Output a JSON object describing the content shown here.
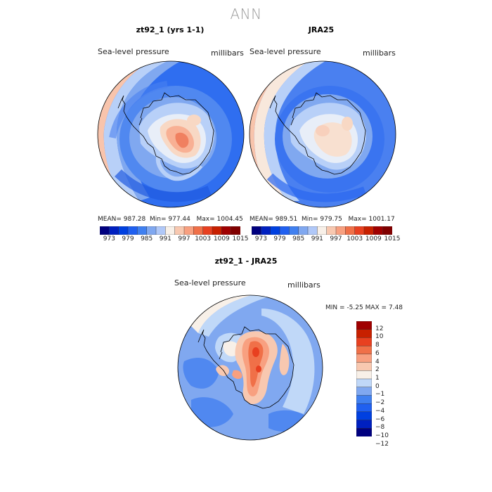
{
  "figure": {
    "title": "ANN",
    "colors": {
      "continent_outline": "#000000",
      "palette_abs": [
        "#00007f",
        "#0020c0",
        "#0040e0",
        "#2060f0",
        "#4080f0",
        "#80a8f0",
        "#b0c8f8",
        "#f8f0e8",
        "#f8c8b0",
        "#f8a080",
        "#f07048",
        "#e84020",
        "#c82000",
        "#a00000",
        "#800000"
      ],
      "palette_diff": [
        "#00007f",
        "#0020c0",
        "#0040e0",
        "#2060f0",
        "#4080f0",
        "#80a8f0",
        "#c0d8f8",
        "#f8f0e8",
        "#f8c8b0",
        "#f8a080",
        "#f07048",
        "#e84020",
        "#c82000",
        "#a00000"
      ]
    }
  },
  "panels": [
    {
      "title": "zt92_1 (yrs 1-1)",
      "field": "Sea-level pressure",
      "units": "millibars",
      "stats": {
        "mean_label": "MEAN=",
        "mean": "987.28",
        "min_label": "Min=",
        "min": "977.44",
        "max_label": "Max=",
        "max": "1004.45"
      },
      "colorbar_ticks": [
        "973",
        "979",
        "985",
        "991",
        "997",
        "1003",
        "1009",
        "1015"
      ]
    },
    {
      "title": "JRA25",
      "field": "Sea-level pressure",
      "units": "millibars",
      "stats": {
        "mean_label": "MEAN=",
        "mean": "989.51",
        "min_label": "Min=",
        "min": "979.75",
        "max_label": "Max=",
        "max": "1001.17"
      },
      "colorbar_ticks": [
        "973",
        "979",
        "985",
        "991",
        "997",
        "1003",
        "1009",
        "1015"
      ]
    }
  ],
  "difference": {
    "title": "zt92_1 - JRA25",
    "field": "Sea-level pressure",
    "units": "millibars",
    "min_label": "MIN =",
    "min": "-5.25",
    "max_label": "MAX =",
    "max": "7.48",
    "colorbar_ticks": [
      "12",
      "10",
      "8",
      "6",
      "4",
      "2",
      "1",
      "0",
      "−1",
      "−2",
      "−4",
      "−6",
      "−8",
      "−10",
      "−12"
    ]
  }
}
